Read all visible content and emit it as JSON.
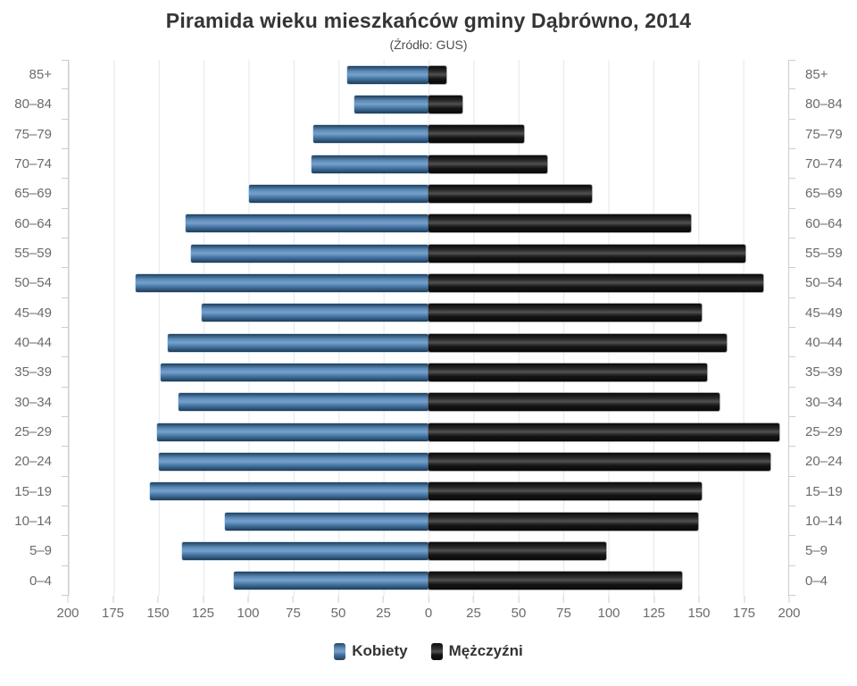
{
  "header": {
    "title": "Piramida wieku mieszkańców gminy Dąbrówno, 2014",
    "subtitle": "(Źródło: GUS)"
  },
  "legend": {
    "female": "Kobiety",
    "male": "Mężczyźni"
  },
  "colors": {
    "female_bar": "#4a80b4",
    "male_bar": "#161616",
    "gridline": "#e3e7eb",
    "axis": "#c9ced4",
    "axis_label": "#6b6b6b",
    "title": "#353535"
  },
  "chart_data": {
    "type": "bar",
    "subtype": "population-pyramid",
    "title": "Piramida wieku mieszkańców gminy Dąbrówno, 2014",
    "subtitle": "(Źródło: GUS)",
    "categories": [
      "85+",
      "80–84",
      "75–79",
      "70–74",
      "65–69",
      "60–64",
      "55–59",
      "50–54",
      "45–49",
      "40–44",
      "35–39",
      "30–34",
      "25–29",
      "20–24",
      "15–19",
      "10–14",
      "5–9",
      "0–4"
    ],
    "series": [
      {
        "name": "Kobiety",
        "side": "left",
        "color": "#4a80b4",
        "values": [
          45,
          41,
          64,
          65,
          100,
          135,
          132,
          163,
          126,
          145,
          149,
          139,
          151,
          150,
          155,
          113,
          137,
          108
        ]
      },
      {
        "name": "Mężczyźni",
        "side": "right",
        "color": "#161616",
        "values": [
          10,
          19,
          53,
          66,
          91,
          146,
          176,
          186,
          152,
          166,
          155,
          162,
          195,
          190,
          152,
          150,
          99,
          141
        ]
      }
    ],
    "x_axis": {
      "min": 0,
      "max": 200,
      "step": 25,
      "mirrored": true,
      "tick_labels": [
        "200",
        "175",
        "150",
        "125",
        "100",
        "75",
        "50",
        "25",
        "0",
        "25",
        "50",
        "75",
        "100",
        "125",
        "150",
        "175",
        "200"
      ]
    },
    "ylabel_left_and_right": "age groups",
    "grid": true,
    "legend_position": "bottom"
  }
}
